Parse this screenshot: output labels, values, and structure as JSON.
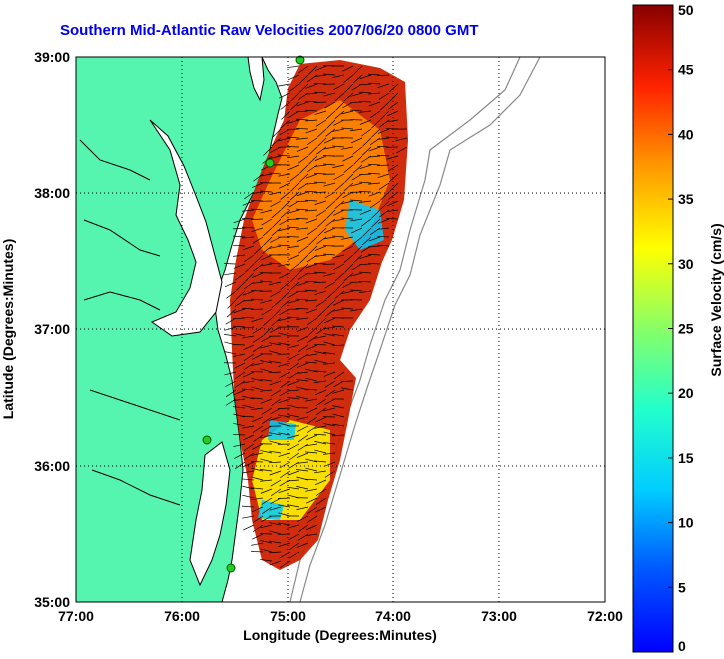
{
  "title": "Southern Mid-Atlantic Raw Velocities 2007/06/20 0800 GMT",
  "map": {
    "xlabel": "Longitude (Degrees:Minutes)",
    "ylabel": "Latitude (Degrees:Minutes)",
    "x_ticks": [
      "77:00",
      "76:00",
      "75:00",
      "74:00",
      "73:00",
      "72:00"
    ],
    "y_ticks": [
      "39:00",
      "38:00",
      "37:00",
      "36:00",
      "35:00"
    ],
    "lon_range": [
      -77,
      -72
    ],
    "lat_range": [
      35,
      39
    ],
    "land_color": "#55f5b0",
    "grid": "dotted"
  },
  "colorbar": {
    "label": "Surface Velocity (cm/s)",
    "ticks": [
      "0",
      "5",
      "10",
      "15",
      "20",
      "25",
      "30",
      "35",
      "40",
      "45",
      "50"
    ],
    "range": [
      0,
      50
    ],
    "colormap": "jet"
  },
  "colors": {
    "title": "#0000ee",
    "station_marker": "#22cc22"
  }
}
